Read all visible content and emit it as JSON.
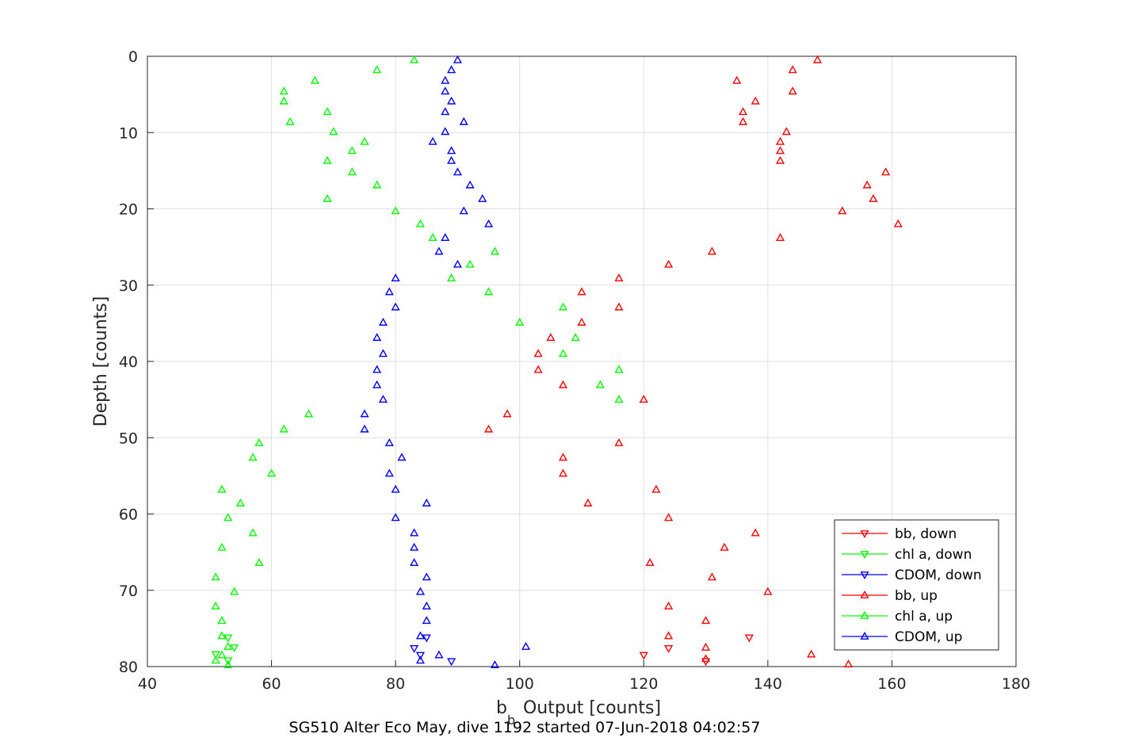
{
  "chart_data": {
    "type": "scatter",
    "xlabel": {
      "main": "b",
      "sub": "b",
      "rest": " Output [counts]"
    },
    "ylabel": "Depth [counts]",
    "caption": "SG510 Alter Eco May, dive 1192 started 07-Jun-2018 04:02:57",
    "xlim": [
      40,
      180
    ],
    "ylim": [
      0,
      80
    ],
    "y_reversed": true,
    "grid": true,
    "legend_placement": "bottom-right",
    "xticks": [
      40,
      60,
      80,
      100,
      120,
      140,
      160,
      180
    ],
    "yticks": [
      0,
      10,
      20,
      30,
      40,
      50,
      60,
      70,
      80
    ],
    "series": [
      {
        "name": "bb, down",
        "color": "#ff0000",
        "marker": "triangle-down",
        "points": [
          [
            137,
            76.2
          ],
          [
            124,
            77.6
          ],
          [
            120,
            78.5
          ],
          [
            130,
            79.3
          ]
        ]
      },
      {
        "name": "chl a, down",
        "color": "#00ff00",
        "marker": "triangle-down",
        "points": [
          [
            53,
            76.2
          ],
          [
            54,
            77.5
          ],
          [
            51,
            78.4
          ],
          [
            53,
            79.2
          ]
        ]
      },
      {
        "name": "CDOM, down",
        "color": "#0000ff",
        "marker": "triangle-down",
        "points": [
          [
            85,
            76.2
          ],
          [
            83,
            77.6
          ],
          [
            84,
            78.5
          ],
          [
            89,
            79.3
          ]
        ]
      },
      {
        "name": "bb, up",
        "color": "#ff0000",
        "marker": "triangle-up",
        "points": [
          [
            148,
            0.5
          ],
          [
            144,
            1.8
          ],
          [
            135,
            3.2
          ],
          [
            144,
            4.6
          ],
          [
            138,
            5.9
          ],
          [
            136,
            7.3
          ],
          [
            136,
            8.6
          ],
          [
            143,
            9.9
          ],
          [
            142,
            11.2
          ],
          [
            142,
            12.4
          ],
          [
            142,
            13.7
          ],
          [
            159,
            15.2
          ],
          [
            156,
            16.9
          ],
          [
            157,
            18.7
          ],
          [
            152,
            20.3
          ],
          [
            161,
            22.0
          ],
          [
            142,
            23.8
          ],
          [
            131,
            25.6
          ],
          [
            124,
            27.3
          ],
          [
            116,
            29.1
          ],
          [
            110,
            30.9
          ],
          [
            116,
            32.9
          ],
          [
            110,
            34.9
          ],
          [
            105,
            36.9
          ],
          [
            103,
            39.0
          ],
          [
            103,
            41.1
          ],
          [
            107,
            43.1
          ],
          [
            120,
            45.0
          ],
          [
            98,
            46.9
          ],
          [
            95,
            48.9
          ],
          [
            116,
            50.7
          ],
          [
            107,
            52.6
          ],
          [
            107,
            54.7
          ],
          [
            122,
            56.8
          ],
          [
            111,
            58.6
          ],
          [
            124,
            60.5
          ],
          [
            138,
            62.5
          ],
          [
            133,
            64.4
          ],
          [
            121,
            66.4
          ],
          [
            131,
            68.3
          ],
          [
            140,
            70.2
          ],
          [
            124,
            72.1
          ],
          [
            130,
            74.0
          ],
          [
            124,
            76.0
          ],
          [
            130,
            77.5
          ],
          [
            130,
            79.0
          ],
          [
            147,
            78.4
          ],
          [
            153,
            79.7
          ]
        ]
      },
      {
        "name": "chl a, up",
        "color": "#00ff00",
        "marker": "triangle-up",
        "points": [
          [
            83,
            0.5
          ],
          [
            77,
            1.8
          ],
          [
            67,
            3.2
          ],
          [
            62,
            4.6
          ],
          [
            62,
            5.9
          ],
          [
            69,
            7.3
          ],
          [
            63,
            8.6
          ],
          [
            70,
            9.9
          ],
          [
            75,
            11.2
          ],
          [
            73,
            12.4
          ],
          [
            69,
            13.7
          ],
          [
            73,
            15.2
          ],
          [
            77,
            16.9
          ],
          [
            69,
            18.7
          ],
          [
            80,
            20.3
          ],
          [
            84,
            22.0
          ],
          [
            86,
            23.8
          ],
          [
            96,
            25.6
          ],
          [
            92,
            27.3
          ],
          [
            89,
            29.1
          ],
          [
            95,
            30.9
          ],
          [
            107,
            32.9
          ],
          [
            100,
            34.9
          ],
          [
            109,
            36.9
          ],
          [
            107,
            39.0
          ],
          [
            116,
            41.1
          ],
          [
            113,
            43.1
          ],
          [
            116,
            45.0
          ],
          [
            66,
            46.9
          ],
          [
            62,
            48.9
          ],
          [
            58,
            50.7
          ],
          [
            57,
            52.6
          ],
          [
            60,
            54.7
          ],
          [
            52,
            56.8
          ],
          [
            55,
            58.6
          ],
          [
            53,
            60.5
          ],
          [
            57,
            62.5
          ],
          [
            52,
            64.4
          ],
          [
            58,
            66.4
          ],
          [
            51,
            68.3
          ],
          [
            54,
            70.2
          ],
          [
            51,
            72.1
          ],
          [
            52,
            74.0
          ],
          [
            52,
            76.0
          ],
          [
            53,
            77.4
          ],
          [
            52,
            78.5
          ],
          [
            51,
            79.2
          ],
          [
            53,
            79.8
          ]
        ]
      },
      {
        "name": "CDOM, up",
        "color": "#0000ff",
        "marker": "triangle-up",
        "points": [
          [
            90,
            0.5
          ],
          [
            89,
            1.8
          ],
          [
            88,
            3.2
          ],
          [
            88,
            4.6
          ],
          [
            89,
            5.9
          ],
          [
            88,
            7.3
          ],
          [
            91,
            8.6
          ],
          [
            88,
            9.9
          ],
          [
            86,
            11.2
          ],
          [
            89,
            12.4
          ],
          [
            89,
            13.7
          ],
          [
            90,
            15.2
          ],
          [
            92,
            16.9
          ],
          [
            94,
            18.7
          ],
          [
            91,
            20.3
          ],
          [
            95,
            22.0
          ],
          [
            88,
            23.8
          ],
          [
            87,
            25.6
          ],
          [
            90,
            27.3
          ],
          [
            80,
            29.1
          ],
          [
            79,
            30.9
          ],
          [
            80,
            32.9
          ],
          [
            78,
            34.9
          ],
          [
            77,
            36.9
          ],
          [
            78,
            39.0
          ],
          [
            77,
            41.1
          ],
          [
            77,
            43.1
          ],
          [
            78,
            45.0
          ],
          [
            75,
            46.9
          ],
          [
            75,
            48.9
          ],
          [
            79,
            50.7
          ],
          [
            81,
            52.6
          ],
          [
            79,
            54.7
          ],
          [
            80,
            56.8
          ],
          [
            85,
            58.6
          ],
          [
            80,
            60.5
          ],
          [
            83,
            62.5
          ],
          [
            83,
            64.4
          ],
          [
            83,
            66.4
          ],
          [
            85,
            68.3
          ],
          [
            84,
            70.2
          ],
          [
            85,
            72.1
          ],
          [
            85,
            74.0
          ],
          [
            84,
            76.0
          ],
          [
            101,
            77.4
          ],
          [
            87,
            78.5
          ],
          [
            84,
            79.2
          ],
          [
            96,
            79.8
          ]
        ]
      }
    ]
  }
}
